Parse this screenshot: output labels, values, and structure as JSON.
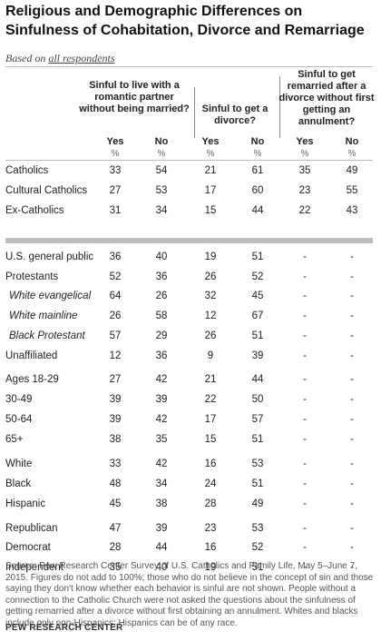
{
  "title": "Religious and Demographic Differences on Sinfulness of Cohabitation, Divorce and Remarriage",
  "subtitle_prefix": "Based on ",
  "subtitle_link": "all respondents",
  "chart_data": {
    "type": "table",
    "column_groups": [
      {
        "header": "Sinful to live with a romantic partner without being married?",
        "subcolumns": [
          "Yes",
          "No"
        ]
      },
      {
        "header": "Sinful to get a divorce?",
        "subcolumns": [
          "Yes",
          "No"
        ]
      },
      {
        "header": "Sinful to get remarried after a divorce without first getting an annulment?",
        "subcolumns": [
          "Yes",
          "No"
        ]
      }
    ],
    "unit_label": "%",
    "rows": [
      {
        "label": "Catholics",
        "values": [
          "33",
          "54",
          "21",
          "61",
          "35",
          "49"
        ]
      },
      {
        "label": "Cultural Catholics",
        "values": [
          "27",
          "53",
          "17",
          "60",
          "23",
          "55"
        ]
      },
      {
        "label": "Ex-Catholics",
        "values": [
          "31",
          "34",
          "15",
          "44",
          "22",
          "43"
        ]
      },
      {
        "label": "U.S. general public",
        "values": [
          "36",
          "40",
          "19",
          "51",
          "-",
          "-"
        ]
      },
      {
        "label": "Protestants",
        "values": [
          "52",
          "36",
          "26",
          "52",
          "-",
          "-"
        ]
      },
      {
        "label": "White evangelical",
        "italic": true,
        "values": [
          "64",
          "26",
          "32",
          "45",
          "-",
          "-"
        ]
      },
      {
        "label": "White mainline",
        "italic": true,
        "values": [
          "26",
          "58",
          "12",
          "67",
          "-",
          "-"
        ]
      },
      {
        "label": "Black Protestant",
        "italic": true,
        "values": [
          "57",
          "29",
          "26",
          "51",
          "-",
          "-"
        ]
      },
      {
        "label": "Unaffiliated",
        "values": [
          "12",
          "36",
          "9",
          "39",
          "-",
          "-"
        ]
      },
      {
        "label": "Ages 18-29",
        "values": [
          "27",
          "42",
          "21",
          "44",
          "-",
          "-"
        ]
      },
      {
        "label": "30-49",
        "values": [
          "39",
          "39",
          "22",
          "50",
          "-",
          "-"
        ]
      },
      {
        "label": "50-64",
        "values": [
          "39",
          "42",
          "17",
          "57",
          "-",
          "-"
        ]
      },
      {
        "label": "65+",
        "values": [
          "38",
          "35",
          "15",
          "51",
          "-",
          "-"
        ]
      },
      {
        "label": "White",
        "values": [
          "33",
          "42",
          "16",
          "53",
          "-",
          "-"
        ]
      },
      {
        "label": "Black",
        "values": [
          "48",
          "34",
          "24",
          "51",
          "-",
          "-"
        ]
      },
      {
        "label": "Hispanic",
        "values": [
          "45",
          "38",
          "28",
          "49",
          "-",
          "-"
        ]
      },
      {
        "label": "Republican",
        "values": [
          "47",
          "39",
          "23",
          "53",
          "-",
          "-"
        ]
      },
      {
        "label": "Democrat",
        "values": [
          "28",
          "44",
          "16",
          "52",
          "-",
          "-"
        ]
      },
      {
        "label": "Independent",
        "values": [
          "35",
          "40",
          "19",
          "51",
          "-",
          "-"
        ]
      }
    ]
  },
  "source": "Source: Pew Research Center Survey of U.S. Catholics and Family Life, May 5–June 7, 2015. Figures do not add to 100%; those who do not believe in the concept of sin and those saying they don't know whether each behavior is sinful are not shown. People without a connection to the Catholic Church were not asked the questions about the sinfulness of getting remarried after a divorce without first obtaining an annulment. Whites and blacks include only non-Hispanics; Hispanics can be of any race.",
  "brand": "PEW RESEARCH CENTER"
}
